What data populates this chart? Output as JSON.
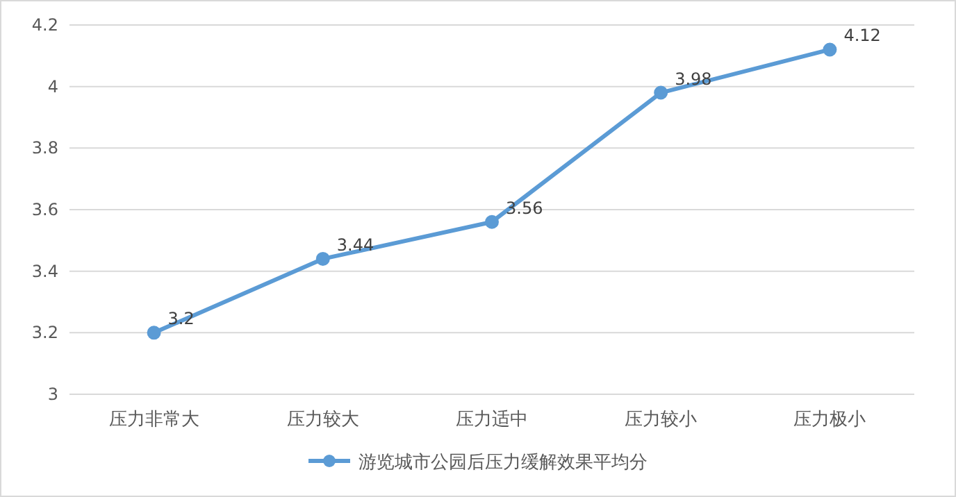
{
  "chart_data": {
    "type": "line",
    "categories": [
      "压力非常大",
      "压力较大",
      "压力适中",
      "压力较小",
      "压力极小"
    ],
    "series": [
      {
        "name": "游览城市公园后压力缓解效果平均分",
        "color": "#5b9bd5",
        "values": [
          3.2,
          3.44,
          3.56,
          3.98,
          4.12
        ]
      }
    ],
    "ylim": [
      3,
      4.2
    ],
    "yticks": [
      3,
      3.2,
      3.4,
      3.6,
      3.8,
      4,
      4.2
    ],
    "grid": "y",
    "legend": "bottom",
    "marker": "circle",
    "line_style": "solid",
    "data_labels": true
  }
}
